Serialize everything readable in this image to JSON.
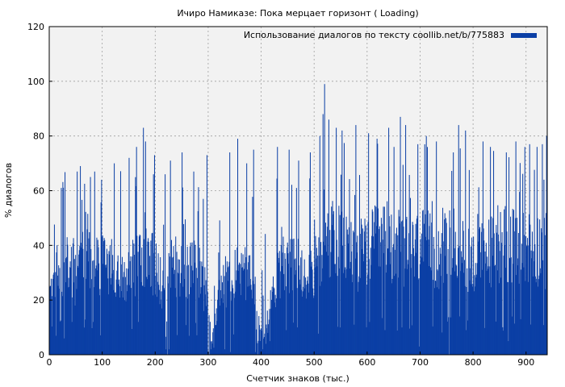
{
  "chart_data": {
    "type": "bar",
    "title": "Ичиро Намиказе: Пока мерцает горизонт ( Loading)",
    "xlabel": "Счетчик знаков (тыс.)",
    "ylabel": "% диалогов",
    "xlim": [
      0,
      940
    ],
    "ylim": [
      0,
      120
    ],
    "xticks": [
      0,
      100,
      200,
      300,
      400,
      500,
      600,
      700,
      800,
      900
    ],
    "yticks": [
      0,
      20,
      40,
      60,
      80,
      100,
      120
    ],
    "grid": true,
    "legend_position": "top-right",
    "series": [
      {
        "name": "Использование диалогов по тексту coollib.net/b/775883",
        "color": "#0b3fa5",
        "bin_width": 1,
        "profile_x": [
          0,
          20,
          40,
          60,
          80,
          100,
          120,
          140,
          160,
          180,
          200,
          215,
          220,
          240,
          260,
          280,
          300,
          305,
          320,
          340,
          360,
          380,
          390,
          400,
          410,
          430,
          460,
          500,
          515,
          520,
          540,
          560,
          580,
          600,
          620,
          640,
          660,
          680,
          700,
          720,
          740,
          760,
          780,
          800,
          820,
          840,
          860,
          880,
          900,
          920,
          940
        ],
        "profile_y": [
          27,
          35,
          33,
          38,
          36,
          35,
          33,
          32,
          34,
          38,
          33,
          25,
          31,
          34,
          32,
          34,
          20,
          3,
          22,
          32,
          34,
          30,
          14,
          8,
          12,
          30,
          34,
          33,
          36,
          45,
          42,
          42,
          38,
          40,
          43,
          44,
          41,
          38,
          42,
          40,
          39,
          42,
          40,
          36,
          38,
          41,
          44,
          40,
          42,
          41,
          43
        ],
        "peaks": [
          [
            22,
            61
          ],
          [
            28,
            62
          ],
          [
            52,
            67
          ],
          [
            58,
            69
          ],
          [
            85,
            67
          ],
          [
            98,
            64
          ],
          [
            122,
            70
          ],
          [
            150,
            72
          ],
          [
            164,
            76
          ],
          [
            177,
            83
          ],
          [
            181,
            78
          ],
          [
            198,
            73
          ],
          [
            218,
            66
          ],
          [
            228,
            71
          ],
          [
            250,
            74
          ],
          [
            272,
            67
          ],
          [
            297,
            73
          ],
          [
            340,
            74
          ],
          [
            355,
            79
          ],
          [
            372,
            70
          ],
          [
            385,
            75
          ],
          [
            412,
            74
          ],
          [
            430,
            76
          ],
          [
            452,
            75
          ],
          [
            470,
            71
          ],
          [
            492,
            74
          ],
          [
            510,
            80
          ],
          [
            516,
            88
          ],
          [
            519,
            99
          ],
          [
            527,
            86
          ],
          [
            541,
            83
          ],
          [
            552,
            82
          ],
          [
            578,
            84
          ],
          [
            602,
            81
          ],
          [
            618,
            79
          ],
          [
            640,
            83
          ],
          [
            650,
            76
          ],
          [
            662,
            87
          ],
          [
            672,
            84
          ],
          [
            695,
            77
          ],
          [
            711,
            80
          ],
          [
            730,
            78
          ],
          [
            762,
            74
          ],
          [
            772,
            84
          ],
          [
            785,
            82
          ],
          [
            818,
            78
          ],
          [
            832,
            76
          ],
          [
            862,
            74
          ],
          [
            880,
            78
          ],
          [
            897,
            76
          ],
          [
            906,
            77
          ],
          [
            920,
            76
          ],
          [
            930,
            77
          ],
          [
            938,
            80
          ]
        ],
        "dips": [
          [
            28,
            6
          ],
          [
            48,
            18
          ],
          [
            82,
            12
          ],
          [
            168,
            12
          ],
          [
            220,
            2
          ],
          [
            222,
            0
          ],
          [
            226,
            2
          ],
          [
            299,
            1
          ],
          [
            300,
            0
          ],
          [
            302,
            0
          ],
          [
            331,
            2
          ],
          [
            341,
            1
          ],
          [
            389,
            1
          ],
          [
            393,
            0
          ],
          [
            398,
            5
          ],
          [
            402,
            2
          ],
          [
            408,
            4
          ],
          [
            412,
            8
          ],
          [
            468,
            10
          ],
          [
            549,
            10
          ],
          [
            575,
            11
          ],
          [
            604,
            12
          ],
          [
            665,
            10
          ],
          [
            698,
            3
          ],
          [
            754,
            0
          ],
          [
            786,
            9
          ],
          [
            866,
            5
          ],
          [
            936,
            24
          ]
        ]
      }
    ]
  }
}
